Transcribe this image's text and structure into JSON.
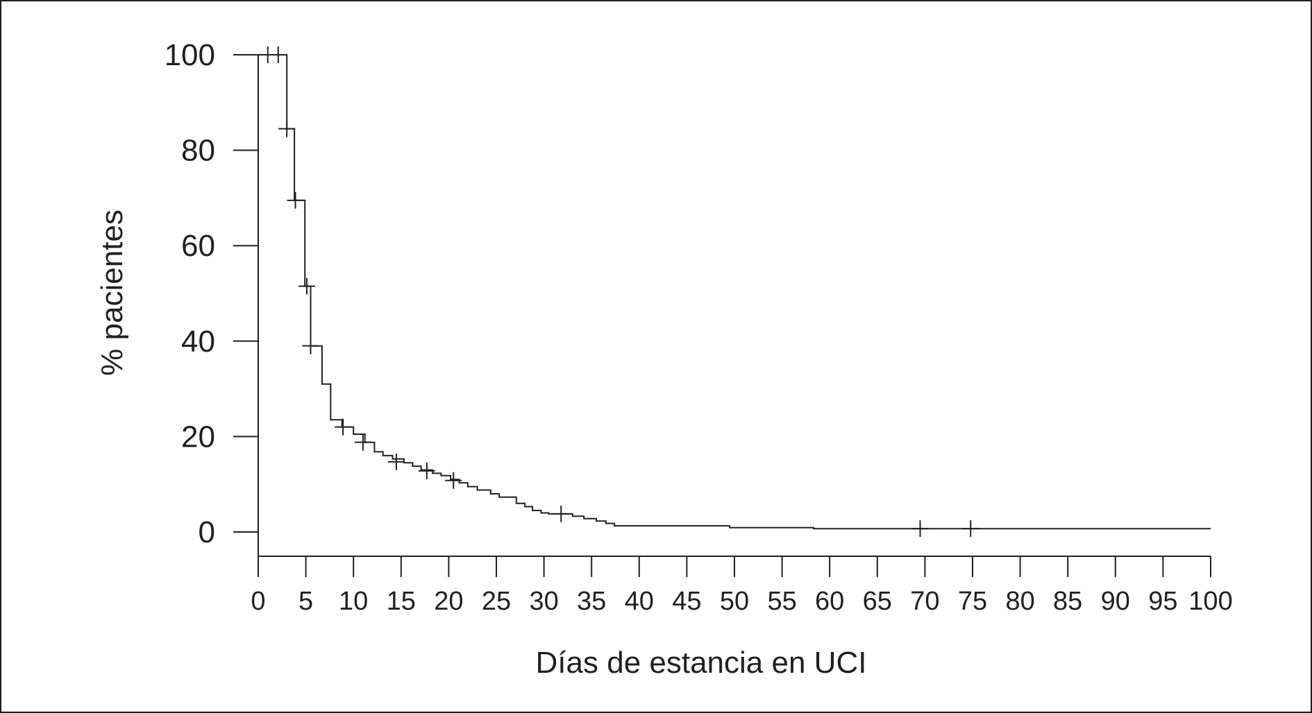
{
  "chart_data": {
    "type": "line",
    "subtype": "kaplan-meier-step",
    "title": "",
    "xlabel": "Días de estancia en UCI",
    "ylabel": "% pacientes",
    "xlim": [
      0,
      100
    ],
    "ylim": [
      0,
      100
    ],
    "xticks": [
      "0",
      "5",
      "10",
      "15",
      "20",
      "25",
      "30",
      "35",
      "40",
      "45",
      "50",
      "55",
      "60",
      "65",
      "70",
      "75",
      "80",
      "85",
      "90",
      "95",
      "100"
    ],
    "yticks": [
      "0",
      "20",
      "40",
      "60",
      "80",
      "100"
    ],
    "grid": false,
    "legend": "none",
    "line_color": "#231f20",
    "series": [
      {
        "x": [
          0,
          3.0,
          3.0,
          3.8,
          3.8,
          4.9,
          4.9,
          5.5,
          5.5,
          6.7,
          6.7,
          7.6,
          7.6,
          8.8,
          8.8,
          10.0,
          10.0,
          11.2,
          11.2,
          12.2,
          12.2,
          13.1,
          13.1,
          14.1,
          14.1,
          15.3,
          15.3,
          16.2,
          16.2,
          17.1,
          17.1,
          18.3,
          18.3,
          19.2,
          19.2,
          20.2,
          20.2,
          21.1,
          21.1,
          22.0,
          22.0,
          23.0,
          23.0,
          24.4,
          24.4,
          25.3,
          25.3,
          27.1,
          27.1,
          28.0,
          28.0,
          28.8,
          28.8,
          29.7,
          29.7,
          30.5,
          30.5,
          33.0,
          33.0,
          34.2,
          34.2,
          35.5,
          35.5,
          36.5,
          36.5,
          37.4,
          37.4,
          38.3,
          38.3,
          49.5,
          49.5,
          58.3,
          58.3,
          100
        ],
        "y": [
          100,
          100,
          84.5,
          84.5,
          69.5,
          69.5,
          51.5,
          51.5,
          39.0,
          39.0,
          31.0,
          31.0,
          23.5,
          23.5,
          22.0,
          22.0,
          20.5,
          20.5,
          18.8,
          18.8,
          16.8,
          16.8,
          16.0,
          16.0,
          15.3,
          15.3,
          14.5,
          14.5,
          13.8,
          13.8,
          13.0,
          13.0,
          12.3,
          12.3,
          11.8,
          11.8,
          11.0,
          11.0,
          10.3,
          10.3,
          9.5,
          9.5,
          8.8,
          8.8,
          8.0,
          8.0,
          7.3,
          7.3,
          6.0,
          6.0,
          5.3,
          5.3,
          4.5,
          4.5,
          4.0,
          4.0,
          3.8,
          3.8,
          3.3,
          3.3,
          2.8,
          2.8,
          2.3,
          2.3,
          1.8,
          1.8,
          1.3,
          1.3,
          1.3,
          1.3,
          0.9,
          0.9,
          0.7,
          0.7
        ]
      }
    ],
    "censored": {
      "x": [
        1.0,
        2.1,
        3.0,
        3.9,
        5.1,
        5.5,
        8.9,
        11.0,
        14.5,
        17.7,
        20.5,
        31.8,
        69.5,
        74.8
      ],
      "y": [
        100,
        100,
        84.5,
        69.5,
        51.5,
        39.0,
        22.0,
        18.8,
        14.7,
        12.8,
        10.8,
        3.8,
        0.7,
        0.7
      ]
    }
  }
}
